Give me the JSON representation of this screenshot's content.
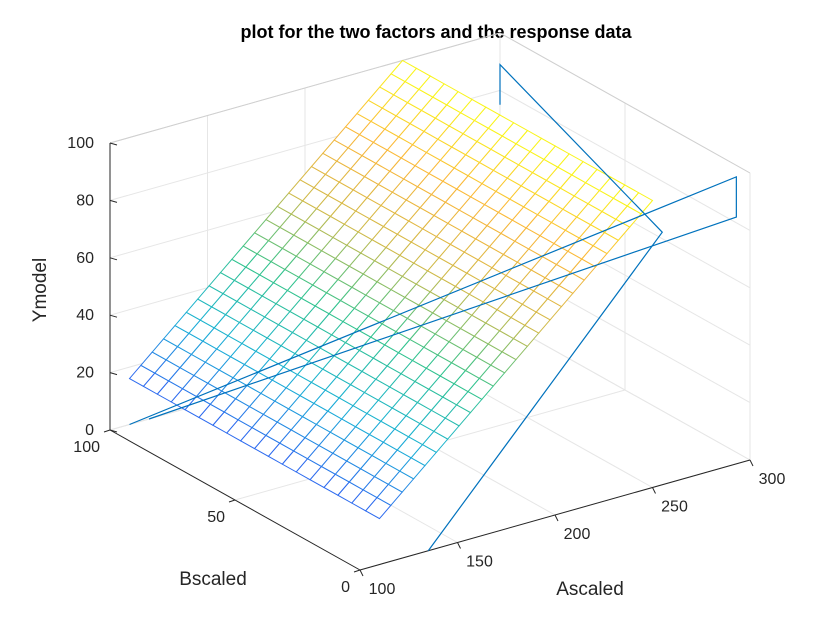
{
  "chart_data": {
    "type": "surface",
    "title": "plot for the two factors and the response data",
    "xlabel": "Ascaled",
    "ylabel": "Bscaled",
    "zlabel": "Ymodel",
    "xlim": [
      100,
      300
    ],
    "ylim": [
      0,
      100
    ],
    "zlim": [
      0,
      100
    ],
    "xticks": [
      "100",
      "150",
      "200",
      "250",
      "300"
    ],
    "yticks": [
      "0",
      "50",
      "100"
    ],
    "zticks": [
      "0",
      "20",
      "40",
      "60",
      "80",
      "100"
    ],
    "grid": true,
    "colormap": [
      "#3e26a8",
      "#2e66f1",
      "#1ab2d5",
      "#33c48c",
      "#d0ba49",
      "#fbb63a",
      "#f9fb15"
    ],
    "surface": {
      "description_model": "Ymodel linear in Ascaled, independent of Bscaled",
      "x_range": [
        110,
        250
      ],
      "y_range": [
        0,
        100
      ],
      "z_at_x_min": 16,
      "z_at_x_max": 100,
      "grid_x_count": 24,
      "grid_y_count": 18
    },
    "series": [
      {
        "type": "line3d",
        "color": "#0072bd",
        "points": [
          [
            110,
            100,
            0
          ],
          [
            293,
            0,
            100
          ],
          [
            293,
            0,
            86
          ],
          [
            120,
            100,
            0
          ]
        ]
      },
      {
        "type": "line3d",
        "color": "#0072bd",
        "points": [
          [
            135,
            0,
            0
          ],
          [
            255,
            0,
            88
          ],
          [
            300,
            100,
            89
          ],
          [
            300,
            100,
            75
          ]
        ]
      }
    ]
  }
}
